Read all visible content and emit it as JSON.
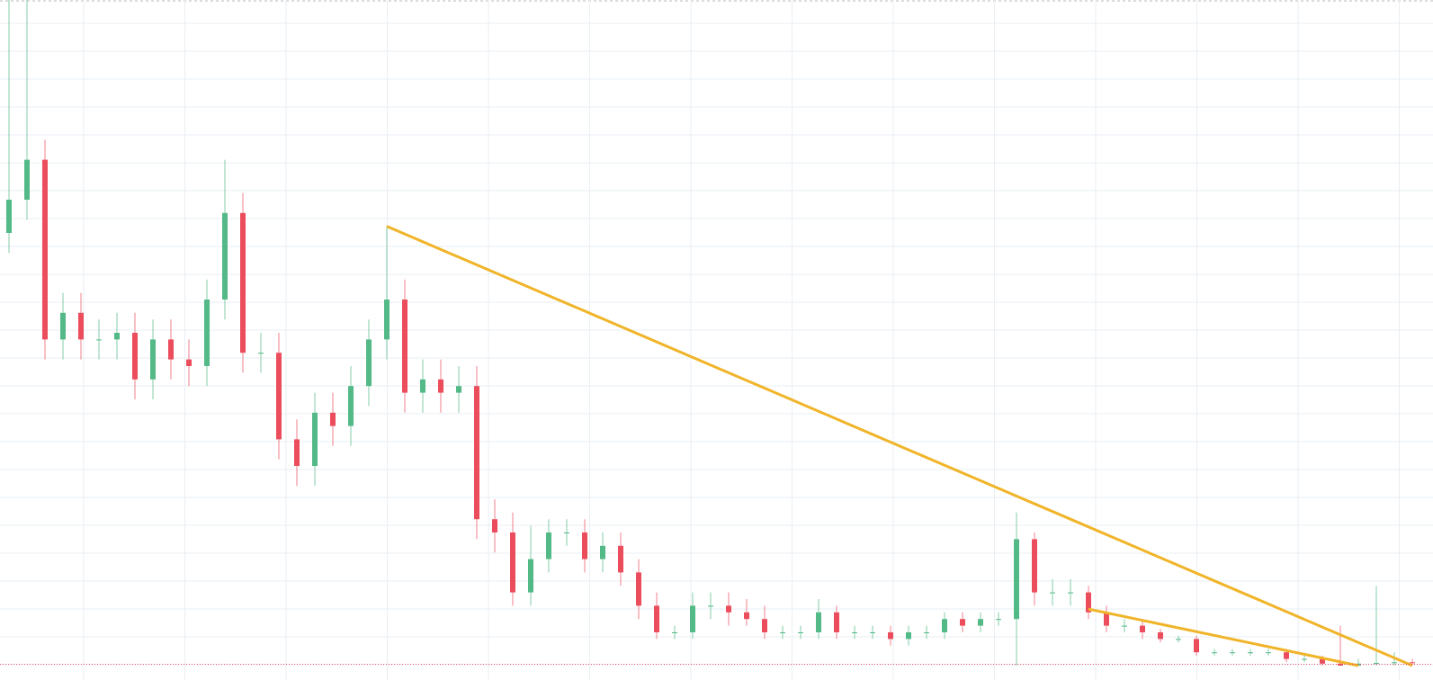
{
  "chart_data": {
    "type": "candlestick",
    "open": [
      65,
      70,
      76,
      49,
      53,
      49,
      49,
      50,
      43,
      49,
      46,
      45,
      55,
      68,
      47,
      47,
      34,
      30,
      38,
      36,
      42,
      49,
      55,
      41,
      43,
      41,
      42,
      22,
      20,
      11,
      16,
      20,
      20,
      16,
      18,
      14,
      9,
      5,
      5,
      9,
      9,
      8,
      7,
      5,
      5,
      5,
      8,
      5,
      5,
      5,
      4,
      5,
      5,
      7,
      6,
      7,
      7,
      19,
      11,
      11,
      11,
      8,
      6,
      6,
      5,
      4,
      4,
      2,
      2,
      2,
      2,
      2,
      1,
      1,
      0.3,
      0,
      0.3,
      0.4,
      0.5
    ],
    "high": [
      100,
      100,
      79,
      56,
      56,
      52,
      53,
      53,
      52,
      52,
      49,
      58,
      76,
      71,
      50,
      50,
      37,
      41,
      41,
      45,
      52,
      66,
      58,
      46,
      46,
      45,
      45,
      25,
      23,
      21,
      22,
      22,
      22,
      20,
      20,
      16,
      11,
      6,
      11,
      11,
      11,
      10,
      9,
      6,
      6,
      10,
      9,
      6,
      6,
      6,
      6,
      6,
      8,
      8,
      8,
      8,
      23,
      20,
      13,
      13,
      12,
      9,
      7,
      7,
      5.5,
      4.5,
      4.5,
      2.5,
      2.5,
      2.5,
      2.5,
      2.5,
      1.5,
      1.5,
      6,
      1,
      12,
      2,
      1
    ],
    "low": [
      62,
      67,
      46,
      46,
      46,
      46,
      46,
      40,
      40,
      43,
      42,
      42,
      52,
      44,
      44,
      31,
      27,
      27,
      33,
      33,
      39,
      46,
      38,
      38,
      38,
      38,
      19,
      17,
      9,
      9,
      14,
      18,
      14,
      14,
      12,
      7,
      4,
      4,
      4,
      7,
      6,
      6,
      4,
      4,
      4,
      4,
      4,
      4,
      4,
      3,
      3,
      4,
      4,
      5,
      5,
      6,
      0,
      9,
      9,
      9,
      7,
      5,
      5,
      4,
      3.5,
      3.5,
      1.5,
      1.5,
      1.5,
      1.5,
      1.5,
      0.5,
      0.5,
      0,
      0,
      0,
      0,
      0,
      0
    ],
    "close": [
      70,
      76,
      49,
      53,
      49,
      49,
      50,
      43,
      49,
      46,
      45,
      55,
      68,
      47,
      47,
      34,
      30,
      38,
      36,
      42,
      49,
      55,
      41,
      43,
      41,
      42,
      22,
      20,
      11,
      16,
      20,
      20,
      16,
      18,
      14,
      9,
      5,
      5,
      9,
      9,
      8,
      7,
      5,
      5,
      5,
      8,
      5,
      5,
      5,
      4,
      5,
      5,
      7,
      6,
      7,
      7,
      19,
      11,
      11,
      11,
      8,
      6,
      6,
      5,
      4,
      4,
      2,
      2,
      2,
      2,
      2,
      1,
      1,
      0.3,
      0,
      0.3,
      0.4,
      0.5,
      0.4
    ],
    "up_color": "#53b987",
    "down_color": "#eb4d5c",
    "ylim": [
      0,
      100
    ],
    "grid": true,
    "price_line": 0.2,
    "price_line_color": "#eb4d5c",
    "trendlines": [
      {
        "start": [
          21,
          66
        ],
        "end": [
          78,
          0
        ],
        "color": "#f0b429"
      },
      {
        "start": [
          60,
          8.5
        ],
        "end": [
          75,
          0
        ],
        "color": "#f0b429"
      }
    ]
  }
}
